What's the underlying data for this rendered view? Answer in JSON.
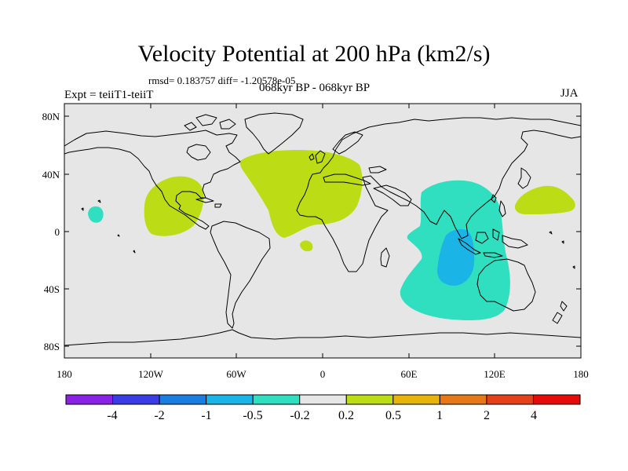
{
  "title": "Velocity Potential at 200 hPa (km2/s)",
  "stats": "rmsd= 0.183757 diff= -1.20578e-05",
  "left_label": "Expt = teiiT1-teiiT",
  "center_label": "068kyr BP - 068kyr BP",
  "right_label": "JJA",
  "colors": {
    "ocean": "#e6e6e6",
    "coast": "#000000",
    "neg_05": "#2fdfc0",
    "neg_1": "#1ab4e6",
    "pos_02": "#bcdc16"
  },
  "map": {
    "x_ticks": [
      "180",
      "120W",
      "60W",
      "0",
      "60E",
      "120E",
      "180"
    ],
    "y_ticks": [
      "80N",
      "40N",
      "0",
      "40S",
      "80S"
    ]
  },
  "colorbar": {
    "labels": [
      "-4",
      "-2",
      "-1",
      "-0.5",
      "-0.2",
      "0.2",
      "0.5",
      "1",
      "2",
      "4"
    ],
    "colors": [
      "#8a22e6",
      "#3c3ce6",
      "#1a7ee0",
      "#1ab4e6",
      "#2fdfc0",
      "#e6e6e6",
      "#bcdc16",
      "#e6b40a",
      "#e6781a",
      "#e6401a",
      "#e60a0a"
    ]
  }
}
